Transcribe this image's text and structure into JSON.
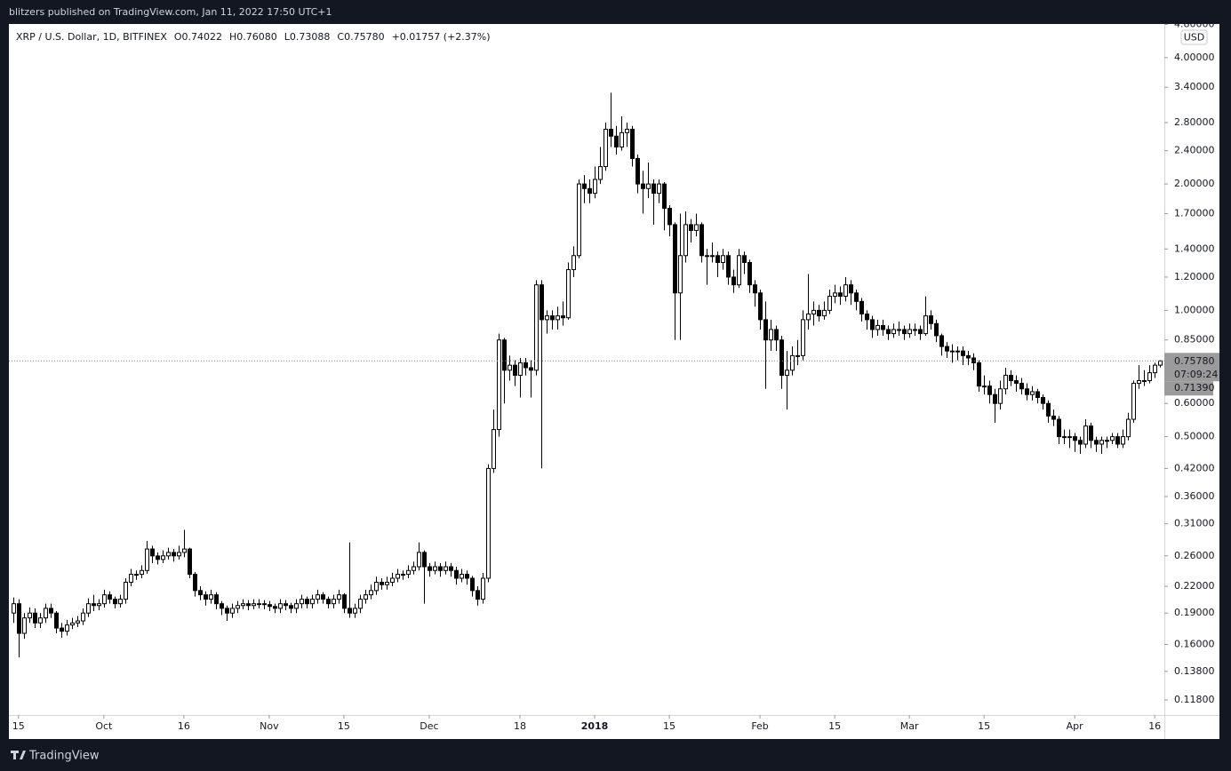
{
  "header": "blitzers published on TradingView.com, Jan 11, 2022 17:50 UTC+1",
  "footer": "TradingView",
  "chart_data": {
    "type": "candlestick",
    "legend": {
      "symbol": "XRP / U.S. Dollar, 1D, BITFINEX",
      "open": "O0.74022",
      "high": "H0.76080",
      "low": "L0.73088",
      "close": "C0.75780",
      "change": "+0.01757 (+2.37%)"
    },
    "currency": "USD",
    "price_tags": [
      "0.75780",
      "07:09:24",
      "0.71390"
    ],
    "log_scale": true,
    "grid": false,
    "up_color": "#ffffff",
    "down_color": "#000000",
    "wick_color": "#000000",
    "xlim": [
      -0.8,
      215.8
    ],
    "xticks": [
      {
        "value": 1,
        "label": "15"
      },
      {
        "value": 17,
        "label": "Oct"
      },
      {
        "value": 32,
        "label": "16"
      },
      {
        "value": 48,
        "label": "Nov"
      },
      {
        "value": 62,
        "label": "15"
      },
      {
        "value": 78,
        "label": "Dec"
      },
      {
        "value": 95,
        "label": "18"
      },
      {
        "value": 109,
        "label": "2018"
      },
      {
        "value": 123,
        "label": "15"
      },
      {
        "value": 140,
        "label": "Feb"
      },
      {
        "value": 154,
        "label": "15"
      },
      {
        "value": 168,
        "label": "Mar"
      },
      {
        "value": 182,
        "label": "15"
      },
      {
        "value": 199,
        "label": "Apr"
      },
      {
        "value": 214,
        "label": "16"
      }
    ],
    "ylim": [
      0.1086,
      4.81
    ],
    "yticks": [
      {
        "value": 0.118,
        "label": "0.11800"
      },
      {
        "value": 0.138,
        "label": "0.13800"
      },
      {
        "value": 0.16,
        "label": "0.16000"
      },
      {
        "value": 0.19,
        "label": "0.19000"
      },
      {
        "value": 0.22,
        "label": "0.22000"
      },
      {
        "value": 0.26,
        "label": "0.26000"
      },
      {
        "value": 0.31,
        "label": "0.31000"
      },
      {
        "value": 0.36,
        "label": "0.36000"
      },
      {
        "value": 0.42,
        "label": "0.42000"
      },
      {
        "value": 0.5,
        "label": "0.50000"
      },
      {
        "value": 0.6,
        "label": "0.60000"
      },
      {
        "value": 0.85,
        "label": "0.85000"
      },
      {
        "value": 1,
        "label": "1.00000"
      },
      {
        "value": 1.2,
        "label": "1.20000"
      },
      {
        "value": 1.4,
        "label": "1.40000"
      },
      {
        "value": 1.7,
        "label": "1.70000"
      },
      {
        "value": 2,
        "label": "2.00000"
      },
      {
        "value": 2.4,
        "label": "2.40000"
      },
      {
        "value": 2.8,
        "label": "2.80000"
      },
      {
        "value": 3.4,
        "label": "3.40000"
      },
      {
        "value": 4,
        "label": "4.00000"
      },
      {
        "value": 4.8,
        "label": "4.80000"
      }
    ],
    "candles": [
      [
        0.19,
        0.207,
        0.18,
        0.2
      ],
      [
        0.2,
        0.205,
        0.149,
        0.17
      ],
      [
        0.17,
        0.19,
        0.165,
        0.185
      ],
      [
        0.185,
        0.196,
        0.18,
        0.19
      ],
      [
        0.19,
        0.195,
        0.175,
        0.18
      ],
      [
        0.18,
        0.19,
        0.175,
        0.185
      ],
      [
        0.185,
        0.2,
        0.18,
        0.195
      ],
      [
        0.195,
        0.2,
        0.185,
        0.19
      ],
      [
        0.19,
        0.192,
        0.17,
        0.175
      ],
      [
        0.175,
        0.18,
        0.166,
        0.172
      ],
      [
        0.172,
        0.183,
        0.168,
        0.178
      ],
      [
        0.178,
        0.185,
        0.174,
        0.18
      ],
      [
        0.18,
        0.187,
        0.176,
        0.182
      ],
      [
        0.182,
        0.195,
        0.178,
        0.19
      ],
      [
        0.19,
        0.206,
        0.186,
        0.2
      ],
      [
        0.2,
        0.21,
        0.192,
        0.198
      ],
      [
        0.198,
        0.205,
        0.193,
        0.2
      ],
      [
        0.2,
        0.216,
        0.196,
        0.21
      ],
      [
        0.21,
        0.214,
        0.2,
        0.205
      ],
      [
        0.205,
        0.208,
        0.195,
        0.2
      ],
      [
        0.2,
        0.21,
        0.196,
        0.205
      ],
      [
        0.205,
        0.23,
        0.2,
        0.225
      ],
      [
        0.225,
        0.242,
        0.22,
        0.235
      ],
      [
        0.235,
        0.24,
        0.228,
        0.235
      ],
      [
        0.235,
        0.247,
        0.23,
        0.24
      ],
      [
        0.24,
        0.282,
        0.236,
        0.27
      ],
      [
        0.27,
        0.275,
        0.25,
        0.26
      ],
      [
        0.26,
        0.265,
        0.248,
        0.255
      ],
      [
        0.255,
        0.268,
        0.25,
        0.26
      ],
      [
        0.26,
        0.272,
        0.255,
        0.265
      ],
      [
        0.265,
        0.27,
        0.252,
        0.26
      ],
      [
        0.26,
        0.275,
        0.255,
        0.265
      ],
      [
        0.265,
        0.3,
        0.258,
        0.27
      ],
      [
        0.27,
        0.272,
        0.23,
        0.235
      ],
      [
        0.235,
        0.238,
        0.208,
        0.215
      ],
      [
        0.215,
        0.22,
        0.204,
        0.21
      ],
      [
        0.21,
        0.214,
        0.198,
        0.205
      ],
      [
        0.205,
        0.216,
        0.2,
        0.21
      ],
      [
        0.21,
        0.213,
        0.194,
        0.2
      ],
      [
        0.2,
        0.203,
        0.188,
        0.195
      ],
      [
        0.195,
        0.198,
        0.182,
        0.19
      ],
      [
        0.19,
        0.2,
        0.185,
        0.195
      ],
      [
        0.195,
        0.203,
        0.19,
        0.198
      ],
      [
        0.198,
        0.205,
        0.194,
        0.2
      ],
      [
        0.2,
        0.204,
        0.193,
        0.198
      ],
      [
        0.198,
        0.205,
        0.194,
        0.2
      ],
      [
        0.2,
        0.205,
        0.195,
        0.2
      ],
      [
        0.2,
        0.204,
        0.194,
        0.199
      ],
      [
        0.199,
        0.203,
        0.192,
        0.197
      ],
      [
        0.197,
        0.2,
        0.19,
        0.195
      ],
      [
        0.195,
        0.205,
        0.19,
        0.2
      ],
      [
        0.2,
        0.204,
        0.193,
        0.198
      ],
      [
        0.198,
        0.201,
        0.19,
        0.195
      ],
      [
        0.195,
        0.205,
        0.19,
        0.2
      ],
      [
        0.2,
        0.21,
        0.195,
        0.205
      ],
      [
        0.205,
        0.208,
        0.195,
        0.2
      ],
      [
        0.2,
        0.21,
        0.195,
        0.205
      ],
      [
        0.205,
        0.216,
        0.2,
        0.21
      ],
      [
        0.21,
        0.213,
        0.2,
        0.205
      ],
      [
        0.205,
        0.208,
        0.195,
        0.2
      ],
      [
        0.2,
        0.21,
        0.195,
        0.205
      ],
      [
        0.205,
        0.216,
        0.2,
        0.21
      ],
      [
        0.21,
        0.212,
        0.19,
        0.195
      ],
      [
        0.195,
        0.28,
        0.185,
        0.19
      ],
      [
        0.19,
        0.2,
        0.185,
        0.195
      ],
      [
        0.195,
        0.21,
        0.19,
        0.205
      ],
      [
        0.205,
        0.216,
        0.2,
        0.21
      ],
      [
        0.21,
        0.222,
        0.205,
        0.215
      ],
      [
        0.215,
        0.232,
        0.21,
        0.225
      ],
      [
        0.225,
        0.23,
        0.216,
        0.222
      ],
      [
        0.222,
        0.232,
        0.216,
        0.225
      ],
      [
        0.225,
        0.237,
        0.22,
        0.23
      ],
      [
        0.23,
        0.242,
        0.225,
        0.235
      ],
      [
        0.235,
        0.24,
        0.228,
        0.235
      ],
      [
        0.235,
        0.247,
        0.23,
        0.24
      ],
      [
        0.24,
        0.252,
        0.235,
        0.245
      ],
      [
        0.245,
        0.28,
        0.24,
        0.265
      ],
      [
        0.265,
        0.268,
        0.2,
        0.245
      ],
      [
        0.245,
        0.25,
        0.232,
        0.24
      ],
      [
        0.24,
        0.252,
        0.235,
        0.245
      ],
      [
        0.245,
        0.25,
        0.232,
        0.24
      ],
      [
        0.24,
        0.252,
        0.235,
        0.245
      ],
      [
        0.245,
        0.25,
        0.232,
        0.24
      ],
      [
        0.24,
        0.245,
        0.222,
        0.23
      ],
      [
        0.23,
        0.242,
        0.225,
        0.235
      ],
      [
        0.235,
        0.24,
        0.222,
        0.23
      ],
      [
        0.23,
        0.233,
        0.208,
        0.215
      ],
      [
        0.215,
        0.22,
        0.198,
        0.205
      ],
      [
        0.205,
        0.237,
        0.2,
        0.23
      ],
      [
        0.23,
        0.43,
        0.225,
        0.42
      ],
      [
        0.42,
        0.58,
        0.41,
        0.52
      ],
      [
        0.52,
        0.88,
        0.5,
        0.85
      ],
      [
        0.85,
        0.86,
        0.6,
        0.72
      ],
      [
        0.72,
        0.78,
        0.68,
        0.74
      ],
      [
        0.74,
        0.76,
        0.66,
        0.7
      ],
      [
        0.7,
        0.77,
        0.62,
        0.75
      ],
      [
        0.75,
        0.77,
        0.7,
        0.73
      ],
      [
        0.73,
        0.76,
        0.62,
        0.72
      ],
      [
        0.72,
        1.18,
        0.7,
        1.15
      ],
      [
        1.15,
        1.18,
        0.42,
        0.95
      ],
      [
        0.95,
        1.0,
        0.88,
        0.97
      ],
      [
        0.97,
        1.0,
        0.9,
        0.95
      ],
      [
        0.95,
        1.02,
        0.9,
        0.97
      ],
      [
        0.97,
        1.05,
        0.92,
        0.96
      ],
      [
        0.96,
        1.3,
        0.95,
        1.25
      ],
      [
        1.25,
        1.42,
        1.2,
        1.35
      ],
      [
        1.35,
        2.05,
        1.33,
        2.0
      ],
      [
        2.0,
        2.1,
        1.8,
        1.95
      ],
      [
        1.95,
        2.05,
        1.8,
        1.9
      ],
      [
        1.9,
        2.2,
        1.85,
        2.05
      ],
      [
        2.05,
        2.45,
        2.0,
        2.2
      ],
      [
        2.2,
        2.8,
        2.15,
        2.7
      ],
      [
        2.7,
        3.3,
        2.45,
        2.6
      ],
      [
        2.6,
        2.75,
        2.35,
        2.45
      ],
      [
        2.45,
        2.9,
        2.4,
        2.65
      ],
      [
        2.65,
        2.8,
        2.45,
        2.7
      ],
      [
        2.7,
        2.75,
        2.2,
        2.3
      ],
      [
        2.3,
        2.35,
        1.9,
        2.0
      ],
      [
        2.0,
        2.15,
        1.7,
        1.95
      ],
      [
        1.95,
        2.25,
        1.85,
        2.0
      ],
      [
        2.0,
        2.05,
        1.6,
        1.9
      ],
      [
        1.9,
        2.05,
        1.8,
        2.0
      ],
      [
        2.0,
        2.02,
        1.55,
        1.75
      ],
      [
        1.75,
        1.78,
        1.5,
        1.6
      ],
      [
        1.6,
        1.62,
        0.85,
        1.1
      ],
      [
        1.1,
        1.7,
        0.85,
        1.35
      ],
      [
        1.35,
        1.72,
        1.3,
        1.6
      ],
      [
        1.6,
        1.65,
        1.45,
        1.55
      ],
      [
        1.55,
        1.7,
        1.5,
        1.6
      ],
      [
        1.6,
        1.62,
        1.3,
        1.35
      ],
      [
        1.35,
        1.4,
        1.15,
        1.35
      ],
      [
        1.35,
        1.45,
        1.3,
        1.35
      ],
      [
        1.35,
        1.38,
        1.2,
        1.3
      ],
      [
        1.3,
        1.4,
        1.25,
        1.35
      ],
      [
        1.35,
        1.38,
        1.15,
        1.2
      ],
      [
        1.2,
        1.25,
        1.1,
        1.15
      ],
      [
        1.15,
        1.4,
        1.13,
        1.35
      ],
      [
        1.35,
        1.38,
        1.22,
        1.3
      ],
      [
        1.3,
        1.32,
        1.1,
        1.15
      ],
      [
        1.15,
        1.18,
        1.02,
        1.1
      ],
      [
        1.1,
        1.12,
        0.9,
        0.95
      ],
      [
        0.95,
        1.05,
        0.65,
        0.85
      ],
      [
        0.85,
        0.95,
        0.8,
        0.9
      ],
      [
        0.9,
        0.92,
        0.8,
        0.85
      ],
      [
        0.85,
        0.87,
        0.65,
        0.7
      ],
      [
        0.7,
        0.8,
        0.58,
        0.72
      ],
      [
        0.72,
        0.82,
        0.7,
        0.78
      ],
      [
        0.78,
        0.85,
        0.74,
        0.78
      ],
      [
        0.78,
        1.0,
        0.76,
        0.95
      ],
      [
        0.95,
        1.22,
        0.9,
        0.98
      ],
      [
        0.98,
        1.05,
        0.92,
        1.0
      ],
      [
        1.0,
        1.03,
        0.94,
        0.97
      ],
      [
        0.97,
        1.05,
        0.95,
        1.0
      ],
      [
        1.0,
        1.12,
        0.98,
        1.08
      ],
      [
        1.08,
        1.15,
        1.04,
        1.1
      ],
      [
        1.1,
        1.14,
        1.03,
        1.08
      ],
      [
        1.08,
        1.2,
        1.05,
        1.15
      ],
      [
        1.15,
        1.18,
        1.03,
        1.1
      ],
      [
        1.1,
        1.12,
        1.0,
        1.05
      ],
      [
        1.05,
        1.07,
        0.94,
        0.98
      ],
      [
        0.98,
        1.0,
        0.9,
        0.95
      ],
      [
        0.95,
        0.97,
        0.86,
        0.9
      ],
      [
        0.9,
        0.95,
        0.87,
        0.92
      ],
      [
        0.92,
        0.95,
        0.87,
        0.9
      ],
      [
        0.9,
        0.92,
        0.85,
        0.88
      ],
      [
        0.88,
        0.93,
        0.86,
        0.9
      ],
      [
        0.9,
        0.94,
        0.87,
        0.9
      ],
      [
        0.9,
        0.92,
        0.85,
        0.88
      ],
      [
        0.88,
        0.93,
        0.86,
        0.9
      ],
      [
        0.9,
        0.93,
        0.87,
        0.9
      ],
      [
        0.9,
        0.92,
        0.85,
        0.88
      ],
      [
        0.88,
        1.08,
        0.87,
        0.97
      ],
      [
        0.97,
        1.0,
        0.9,
        0.93
      ],
      [
        0.93,
        0.95,
        0.84,
        0.87
      ],
      [
        0.87,
        0.88,
        0.78,
        0.82
      ],
      [
        0.82,
        0.84,
        0.77,
        0.8
      ],
      [
        0.8,
        0.83,
        0.75,
        0.8
      ],
      [
        0.8,
        0.82,
        0.76,
        0.8
      ],
      [
        0.8,
        0.82,
        0.74,
        0.78
      ],
      [
        0.78,
        0.8,
        0.74,
        0.77
      ],
      [
        0.77,
        0.79,
        0.72,
        0.75
      ],
      [
        0.75,
        0.76,
        0.64,
        0.66
      ],
      [
        0.66,
        0.7,
        0.63,
        0.66
      ],
      [
        0.66,
        0.68,
        0.6,
        0.63
      ],
      [
        0.63,
        0.65,
        0.54,
        0.6
      ],
      [
        0.6,
        0.68,
        0.58,
        0.65
      ],
      [
        0.65,
        0.73,
        0.63,
        0.7
      ],
      [
        0.7,
        0.72,
        0.66,
        0.68
      ],
      [
        0.68,
        0.7,
        0.64,
        0.67
      ],
      [
        0.67,
        0.69,
        0.63,
        0.65
      ],
      [
        0.65,
        0.67,
        0.61,
        0.63
      ],
      [
        0.63,
        0.66,
        0.61,
        0.64
      ],
      [
        0.64,
        0.65,
        0.6,
        0.62
      ],
      [
        0.62,
        0.63,
        0.58,
        0.6
      ],
      [
        0.6,
        0.61,
        0.54,
        0.56
      ],
      [
        0.56,
        0.58,
        0.53,
        0.55
      ],
      [
        0.55,
        0.56,
        0.48,
        0.5
      ],
      [
        0.5,
        0.52,
        0.48,
        0.5
      ],
      [
        0.5,
        0.52,
        0.47,
        0.5
      ],
      [
        0.5,
        0.51,
        0.46,
        0.49
      ],
      [
        0.49,
        0.5,
        0.455,
        0.48
      ],
      [
        0.48,
        0.55,
        0.47,
        0.53
      ],
      [
        0.53,
        0.54,
        0.47,
        0.49
      ],
      [
        0.49,
        0.5,
        0.46,
        0.48
      ],
      [
        0.48,
        0.5,
        0.455,
        0.49
      ],
      [
        0.49,
        0.5,
        0.47,
        0.49
      ],
      [
        0.49,
        0.51,
        0.48,
        0.5
      ],
      [
        0.5,
        0.51,
        0.47,
        0.48
      ],
      [
        0.48,
        0.52,
        0.47,
        0.5
      ],
      [
        0.5,
        0.57,
        0.49,
        0.55
      ],
      [
        0.55,
        0.68,
        0.54,
        0.67
      ],
      [
        0.67,
        0.74,
        0.65,
        0.68
      ],
      [
        0.68,
        0.72,
        0.66,
        0.68
      ],
      [
        0.68,
        0.74,
        0.67,
        0.71
      ],
      [
        0.71,
        0.75,
        0.69,
        0.74
      ],
      [
        0.74022,
        0.7608,
        0.73088,
        0.7578
      ]
    ]
  }
}
